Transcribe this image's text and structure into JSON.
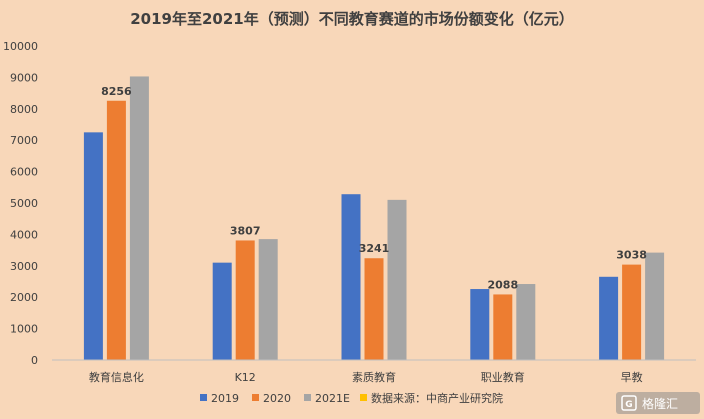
{
  "chart_data": {
    "type": "bar",
    "title": "2019年至2021年（预测）不同教育赛道的市场份额变化（亿元）",
    "categories": [
      "教育信息化",
      "K12",
      "素质教育",
      "职业教育",
      "早教"
    ],
    "series": [
      {
        "name": "2019",
        "color": "#4472c4",
        "values": [
          7250,
          3100,
          5280,
          2260,
          2650
        ]
      },
      {
        "name": "2020",
        "color": "#ed7d31",
        "values": [
          8256,
          3807,
          3241,
          2088,
          3038
        ]
      },
      {
        "name": "2021E",
        "color": "#a5a5a5",
        "values": [
          9030,
          3850,
          5100,
          2420,
          3420
        ]
      }
    ],
    "data_labels": [
      {
        "series": "2020",
        "values": [
          8256,
          3807,
          3241,
          2088,
          3038
        ]
      }
    ],
    "ylim": [
      0,
      10000
    ],
    "yticks": [
      0,
      1000,
      2000,
      3000,
      4000,
      5000,
      6000,
      7000,
      8000,
      9000,
      10000
    ],
    "grid": false,
    "legend_position": "bottom",
    "source_legend": {
      "label": "数据来源：中商产业研究院",
      "color": "#ffc000"
    }
  },
  "watermark": {
    "text": "格隆汇"
  }
}
